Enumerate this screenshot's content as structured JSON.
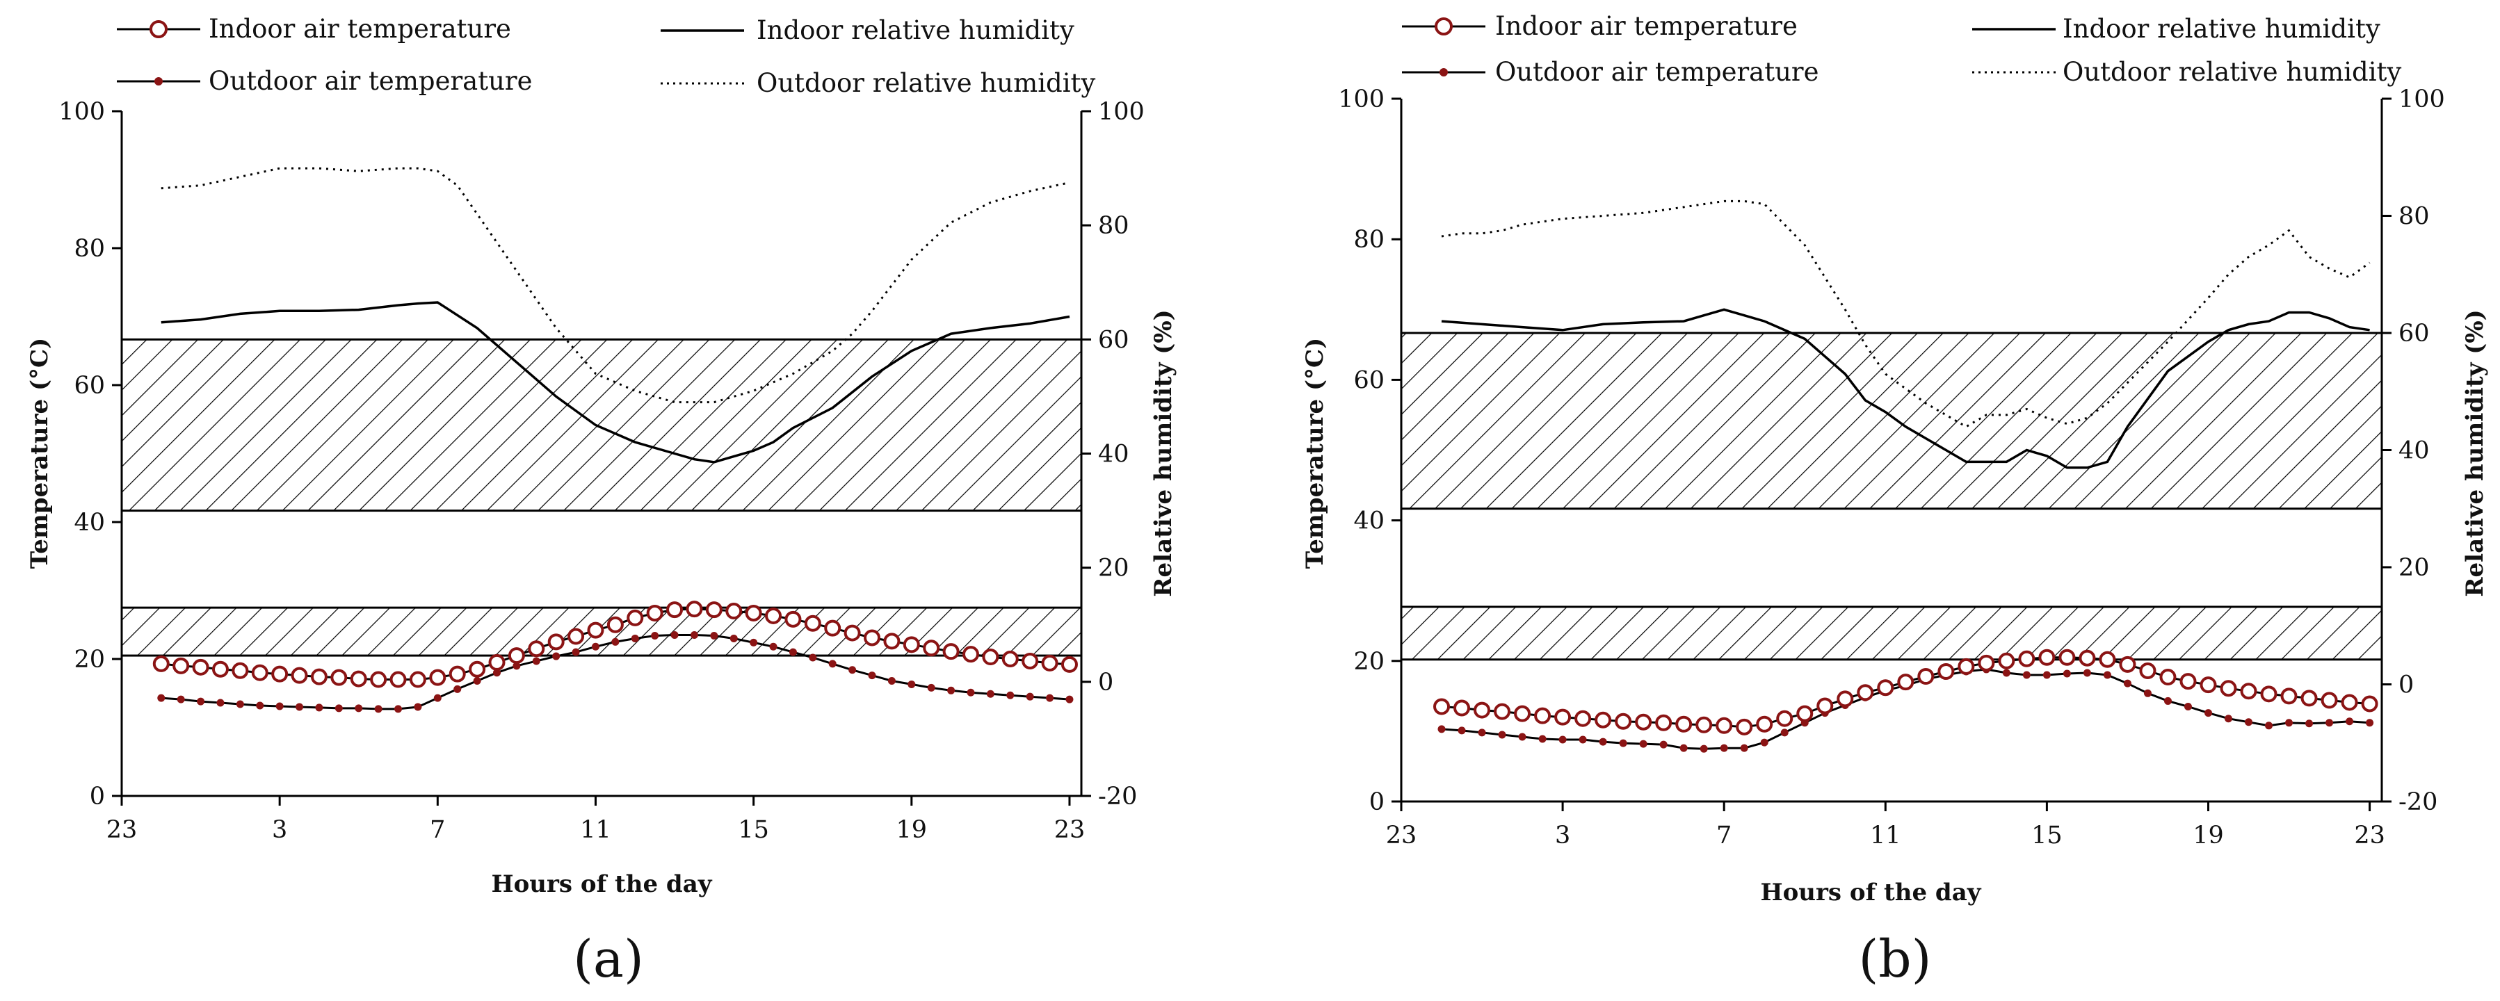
{
  "colors": {
    "marker": "#8B1414",
    "line": "#000000",
    "background": "#ffffff"
  },
  "chart_data": [
    {
      "type": "line",
      "panel_label": "(a)",
      "xlabel": "Hours of the day",
      "ylabel_left": "Temperature (°C)",
      "ylabel_right": "Relative humidity (%)",
      "ylim_left": [
        0,
        100
      ],
      "ylim_right": [
        -20,
        100
      ],
      "x_range": [
        23,
        47.3
      ],
      "yticks_left": [
        0,
        20,
        40,
        60,
        80,
        100
      ],
      "yticks_right": [
        -20,
        0,
        20,
        40,
        60,
        80,
        100
      ],
      "x_ticks": [
        {
          "pos": 23,
          "label": "23"
        },
        {
          "pos": 27,
          "label": "3"
        },
        {
          "pos": 31,
          "label": "7"
        },
        {
          "pos": 35,
          "label": "11"
        },
        {
          "pos": 39,
          "label": "15"
        },
        {
          "pos": 43,
          "label": "19"
        },
        {
          "pos": 47,
          "label": "23"
        }
      ],
      "legend": {
        "indoor_temp": "Indoor air temperature",
        "outdoor_temp": "Outdoor air temperature",
        "indoor_rh": "Indoor relative humidity",
        "outdoor_rh": "Outdoor relative humidity"
      },
      "bands": [
        {
          "name": "humidity comfort zone",
          "axis": "right",
          "from": 30,
          "to": 60
        },
        {
          "name": "temperature comfort zone",
          "axis": "left",
          "from": 20.5,
          "to": 27.5
        }
      ],
      "series": [
        {
          "name": "Indoor air temperature",
          "axis": "left",
          "style": "open-circle",
          "x": [
            24,
            24.5,
            25,
            25.5,
            26,
            26.5,
            27,
            27.5,
            28,
            28.5,
            29,
            29.5,
            30,
            30.5,
            31,
            31.5,
            32,
            32.5,
            33,
            33.5,
            34,
            34.5,
            35,
            35.5,
            36,
            36.5,
            37,
            37.5,
            38,
            38.5,
            39,
            39.5,
            40,
            40.5,
            41,
            41.5,
            42,
            42.5,
            43,
            43.5,
            44,
            44.5,
            45,
            45.5,
            46,
            46.5,
            47
          ],
          "values": [
            19.3,
            19,
            18.8,
            18.5,
            18.3,
            18,
            17.8,
            17.6,
            17.4,
            17.3,
            17.1,
            17,
            17,
            17,
            17.3,
            17.8,
            18.5,
            19.5,
            20.5,
            21.5,
            22.5,
            23.3,
            24.2,
            25,
            26,
            26.7,
            27.2,
            27.3,
            27.2,
            27,
            26.7,
            26.3,
            25.8,
            25.2,
            24.5,
            23.8,
            23.1,
            22.6,
            22.1,
            21.6,
            21.1,
            20.7,
            20.3,
            20,
            19.7,
            19.4,
            19.2
          ]
        },
        {
          "name": "Outdoor air temperature",
          "axis": "left",
          "style": "filled-dot",
          "x": [
            24,
            24.5,
            25,
            25.5,
            26,
            26.5,
            27,
            27.5,
            28,
            28.5,
            29,
            29.5,
            30,
            30.5,
            31,
            31.5,
            32,
            32.5,
            33,
            33.5,
            34,
            34.5,
            35,
            35.5,
            36,
            36.5,
            37,
            37.5,
            38,
            38.5,
            39,
            39.5,
            40,
            40.5,
            41,
            41.5,
            42,
            42.5,
            43,
            43.5,
            44,
            44.5,
            45,
            45.5,
            46,
            46.5,
            47
          ],
          "values": [
            14.3,
            14.1,
            13.8,
            13.6,
            13.4,
            13.2,
            13.1,
            13,
            12.9,
            12.8,
            12.8,
            12.7,
            12.7,
            13,
            14.3,
            15.6,
            16.8,
            18,
            19,
            19.7,
            20.4,
            21,
            21.8,
            22.5,
            23,
            23.4,
            23.5,
            23.5,
            23.4,
            23,
            22.4,
            21.8,
            21,
            20.2,
            19.3,
            18.4,
            17.6,
            16.8,
            16.3,
            15.8,
            15.4,
            15.1,
            14.9,
            14.7,
            14.5,
            14.3,
            14.1
          ]
        },
        {
          "name": "Indoor relative humidity",
          "axis": "right",
          "style": "solid",
          "x": [
            24,
            25,
            26,
            27,
            28,
            29,
            30,
            30.5,
            31,
            32,
            33,
            34,
            35,
            36,
            37,
            37.5,
            38,
            38.5,
            39,
            39.5,
            40,
            41,
            42,
            43,
            44,
            45,
            46,
            47
          ],
          "values": [
            63,
            63.5,
            64.5,
            65,
            65,
            65.2,
            66,
            66.3,
            66.5,
            62,
            56,
            50,
            45,
            42,
            40,
            39,
            38.5,
            39.5,
            40.5,
            42,
            44.5,
            48,
            53.5,
            58,
            61,
            62,
            62.8,
            64
          ]
        },
        {
          "name": "Outdoor relative humidity",
          "axis": "right",
          "style": "dotted",
          "x": [
            24,
            25,
            26,
            27,
            28,
            29,
            30,
            30.5,
            31,
            31.5,
            32,
            33,
            34,
            35,
            36,
            37,
            38,
            39,
            40,
            41,
            41.5,
            42,
            43,
            44,
            45,
            46,
            47
          ],
          "values": [
            86.5,
            87,
            88.5,
            90,
            90,
            89.5,
            90,
            90,
            89.5,
            87,
            82,
            72,
            62,
            54,
            51,
            49,
            49,
            51,
            54,
            58,
            61,
            65,
            74,
            80.5,
            84,
            86,
            87.5
          ]
        }
      ]
    },
    {
      "type": "line",
      "panel_label": "(b)",
      "xlabel": "Hours of the day",
      "ylabel_left": "Temperature (°C)",
      "ylabel_right": "Relative humidity (%)",
      "ylim_left": [
        0,
        100
      ],
      "ylim_right": [
        -20,
        100
      ],
      "x_range": [
        23,
        47.3
      ],
      "yticks_left": [
        0,
        20,
        40,
        60,
        80,
        100
      ],
      "yticks_right": [
        -20,
        0,
        20,
        40,
        60,
        80,
        100
      ],
      "x_ticks": [
        {
          "pos": 23,
          "label": "23"
        },
        {
          "pos": 27,
          "label": "3"
        },
        {
          "pos": 31,
          "label": "7"
        },
        {
          "pos": 35,
          "label": "11"
        },
        {
          "pos": 39,
          "label": "15"
        },
        {
          "pos": 43,
          "label": "19"
        },
        {
          "pos": 47,
          "label": "23"
        }
      ],
      "legend": {
        "indoor_temp": "Indoor air temperature",
        "outdoor_temp": "Outdoor air temperature",
        "indoor_rh": "Indoor relative humidity",
        "outdoor_rh": "Outdoor relative humidity"
      },
      "bands": [
        {
          "name": "humidity comfort zone",
          "axis": "right",
          "from": 30,
          "to": 60
        },
        {
          "name": "temperature comfort zone",
          "axis": "left",
          "from": 20.2,
          "to": 27.7
        }
      ],
      "series": [
        {
          "name": "Indoor air temperature",
          "axis": "left",
          "style": "open-circle",
          "x": [
            24,
            24.5,
            25,
            25.5,
            26,
            26.5,
            27,
            27.5,
            28,
            28.5,
            29,
            29.5,
            30,
            30.5,
            31,
            31.5,
            32,
            32.5,
            33,
            33.5,
            34,
            34.5,
            35,
            35.5,
            36,
            36.5,
            37,
            37.5,
            38,
            38.5,
            39,
            39.5,
            40,
            40.5,
            41,
            41.5,
            42,
            42.5,
            43,
            43.5,
            44,
            44.5,
            45,
            45.5,
            46,
            46.5,
            47
          ],
          "values": [
            13.5,
            13.3,
            13,
            12.8,
            12.5,
            12.2,
            12,
            11.8,
            11.6,
            11.4,
            11.3,
            11.2,
            11,
            10.9,
            10.8,
            10.6,
            11,
            11.8,
            12.5,
            13.6,
            14.6,
            15.5,
            16.2,
            17,
            17.8,
            18.5,
            19.2,
            19.7,
            20,
            20.3,
            20.5,
            20.5,
            20.4,
            20.2,
            19.5,
            18.6,
            17.7,
            17.1,
            16.6,
            16.1,
            15.7,
            15.3,
            15,
            14.7,
            14.4,
            14.1,
            13.9
          ]
        },
        {
          "name": "Outdoor air temperature",
          "axis": "left",
          "style": "filled-dot",
          "x": [
            24,
            24.5,
            25,
            25.5,
            26,
            26.5,
            27,
            27.5,
            28,
            28.5,
            29,
            29.5,
            30,
            30.5,
            31,
            31.5,
            32,
            32.5,
            33,
            33.5,
            34,
            34.5,
            35,
            35.5,
            36,
            36.5,
            37,
            37.5,
            38,
            38.5,
            39,
            39.5,
            40,
            40.5,
            41,
            41.5,
            42,
            42.5,
            43,
            43.5,
            44,
            44.5,
            45,
            45.5,
            46,
            46.5,
            47
          ],
          "values": [
            10.3,
            10.1,
            9.8,
            9.5,
            9.2,
            8.9,
            8.8,
            8.8,
            8.5,
            8.3,
            8.2,
            8.1,
            7.6,
            7.5,
            7.6,
            7.6,
            8.4,
            9.8,
            11.2,
            12.6,
            13.7,
            14.8,
            15.8,
            16.5,
            17.4,
            18,
            18.5,
            18.8,
            18.3,
            18,
            18,
            18.2,
            18.3,
            18,
            16.8,
            15.4,
            14.3,
            13.5,
            12.6,
            11.8,
            11.3,
            10.8,
            11.2,
            11.1,
            11.2,
            11.4,
            11.2
          ]
        },
        {
          "name": "Indoor relative humidity",
          "axis": "right",
          "style": "solid",
          "x": [
            24,
            25,
            26,
            27,
            28,
            29,
            30,
            30.5,
            31,
            31.5,
            32,
            33,
            34,
            34.5,
            35,
            35.5,
            36,
            37,
            37.5,
            38,
            38.5,
            39,
            39.5,
            40,
            40.5,
            41,
            42,
            43,
            43.5,
            44,
            44.5,
            45,
            45.5,
            46,
            46.5,
            47
          ],
          "values": [
            62,
            61.5,
            61,
            60.5,
            61.5,
            61.8,
            62,
            63,
            64,
            63,
            62,
            59,
            53,
            48.5,
            46.5,
            44,
            42,
            38,
            38,
            38,
            40,
            39,
            37,
            37,
            38,
            44,
            53.5,
            58.5,
            60.5,
            61.5,
            62,
            63.5,
            63.5,
            62.5,
            61,
            60.5
          ]
        },
        {
          "name": "Outdoor relative humidity",
          "axis": "right",
          "style": "dotted",
          "x": [
            24,
            24.5,
            25,
            25.5,
            26,
            27,
            28,
            29,
            30,
            30.5,
            31,
            31.5,
            32,
            33,
            34,
            34.5,
            35,
            36,
            37,
            37.5,
            38,
            38.5,
            39,
            39.5,
            40,
            40.5,
            41,
            42,
            43,
            43.5,
            44,
            44.5,
            45,
            45.5,
            46,
            46.5,
            47
          ],
          "values": [
            76.5,
            77,
            77,
            77.5,
            78.5,
            79.5,
            80,
            80.5,
            81.5,
            82,
            82.5,
            82.5,
            82,
            75,
            64,
            58,
            53,
            48,
            44,
            46,
            46,
            47,
            45.5,
            44.5,
            45.5,
            48,
            51.5,
            58.5,
            66,
            70,
            73,
            75,
            77.5,
            73,
            71,
            69.5,
            72
          ]
        }
      ]
    }
  ]
}
